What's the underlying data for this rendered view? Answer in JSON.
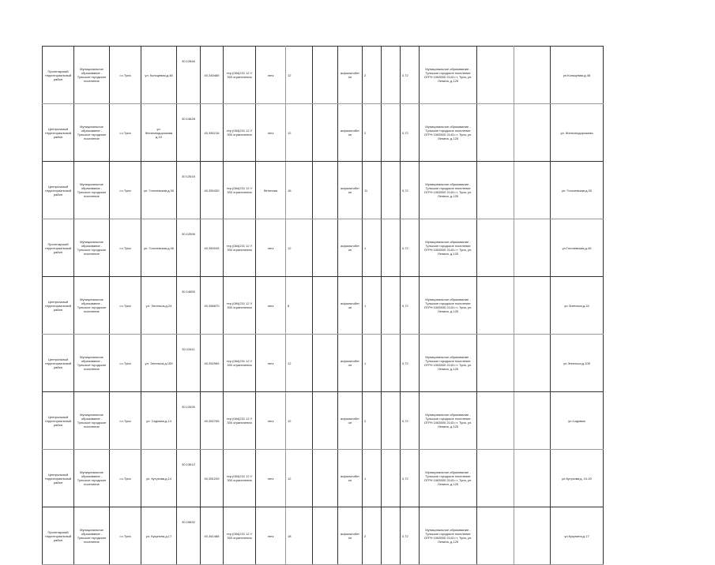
{
  "table": {
    "rows": [
      [
        "Пролетарский территориальный район",
        "Муниципальное образование - Тульское городское поселение",
        "г.о.Тула",
        "ул. Кольцевая,д.48",
        "30:12846",
        "40,345485",
        "тер.(084)231 12 У 300 ограничения",
        "легк",
        "12",
        "",
        "асфальтобетон",
        "2",
        "",
        "0,72",
        "Муниципальное образование - Тульское городское поселение ОГРН 1063500 2143 г.т. Тула, ул. Ленина, д.125",
        "",
        "",
        "ул.Кольцевая,д.48"
      ],
      [
        "Центральный территориальный район",
        "Муниципальное образование - Тульское городское поселение",
        "г.о.Тула",
        "ул. Железнодорожная д.10",
        "30:14628",
        "40,350216",
        "тер.(084)231 12 У 300 ограничения",
        "легк",
        "12",
        "",
        "асфальтобетон",
        "2",
        "",
        "0,72",
        "Муниципальное образование - Тульское городское поселение ОГРН 1063500 2143 г.т. Тула, ул. Ленина, д.125",
        "",
        "",
        "ул. Железнодорожная"
      ],
      [
        "Центральный территориальный район",
        "Муниципальное образование - Тульское городское поселение",
        "г.о.Тула",
        "ул. Гоголевская,д.30",
        "30:12618",
        "40,350430",
        "тер.(084)231 12 У 300 ограничения",
        "бетонная",
        "16",
        "",
        "асфальтобетон",
        "11",
        "",
        "0,72",
        "Муниципальное образование - Тульское городское поселение ОГРН 1063500 2143 г.т. Тула, ул. Ленина, д.125",
        "",
        "",
        "ул. Гоголевская,д.30"
      ],
      [
        "Пролетарский территориальный район",
        "Муниципальное образование - Тульское городское поселение",
        "г.о.Тула",
        "ул. Гоголевская,д.46",
        "30:12596",
        "40,350045",
        "тер.(084)231 12 У 300 ограничения",
        "легк",
        "12",
        "",
        "асфальтобетон",
        "1",
        "",
        "0,72",
        "Муниципальное образование - Тульское городское поселение ОГРН 1063500 2143 г.т. Тула, ул. Ленина, д.125",
        "",
        "",
        "ул.Гоголевская,д.46"
      ],
      [
        "Центральный территориальный район",
        "Муниципальное образование - Тульское городское поселение",
        "г.о.Тула",
        "ул. Энгельса,д.24",
        "30:14655",
        "40,356870",
        "тер.(084)231 12 У 300 ограничения",
        "легк",
        "8",
        "",
        "асфальтобетон",
        "1",
        "",
        "0,72",
        "Муниципальное образование - Тульское городское поселение ОГРН 1063500 2143 г.т. Тула, ул. Ленина, д.125",
        "",
        "",
        "ул.Энгельса,д.24"
      ],
      [
        "Центральный территориальный район",
        "Муниципальное образование - Тульское городское поселение",
        "г.о.Тула",
        "ул. Энгельса,д.105",
        "30:12611",
        "40,352989",
        "тер.(084)231 12 У 300 ограничения",
        "легк",
        "12",
        "",
        "асфальтобетон",
        "1",
        "",
        "0,72",
        "Муниципальное образование - Тульское городское поселение ОГРН 1063500 2143 г.т. Тула, ул. Ленина, д.125",
        "",
        "",
        "ул.Энгельса,д.105"
      ],
      [
        "Центральный территориальный район",
        "Муниципальное образование - Тульское городское поселение",
        "г.о.Тула",
        "ул. Садовая,д.14",
        "30:12626",
        "40,352765",
        "тер.(084)231 12 У 300 ограничения",
        "легк",
        "12",
        "",
        "асфальтобетон",
        "2",
        "",
        "0,72",
        "Муниципальное образование - Тульское городское поселение ОГРН 1063500 2143 г.т. Тула, ул. Ленина, д.125",
        "",
        "",
        "ул.Садовая"
      ],
      [
        "Центральный территориальный район",
        "Муниципальное образование - Тульское городское поселение",
        "г.о.Тула",
        "ул. Кутузова,д.14",
        "30:13612",
        "40,351249",
        "тер.(084)231 12 У 300 ограничения",
        "легк",
        "12",
        "",
        "асфальтобетон",
        "1",
        "",
        "0,72",
        "Муниципальное образование - Тульское городское поселение ОГРН 1063500 2143 г.т. Тула, ул. Ленина, д.125",
        "",
        "",
        "ул.Кутузова,д. 10-20"
      ],
      [
        "Пролетарский территориальный район",
        "Муниципальное образование - Тульское городское поселение",
        "г.о.Тула",
        "ул. Кукунина,д.17",
        "30:15832",
        "40,361488",
        "тер.(084)231 12 У 300 ограничения",
        "легк",
        "18",
        "",
        "асфальтобетон",
        "2",
        "",
        "0,72",
        "Муниципальное образование - Тульское городское поселение ОГРН 1063500 2143 г.т. Тула, ул. Ленина, д.125",
        "",
        "",
        "ул.Кукунина,д.17"
      ]
    ]
  }
}
